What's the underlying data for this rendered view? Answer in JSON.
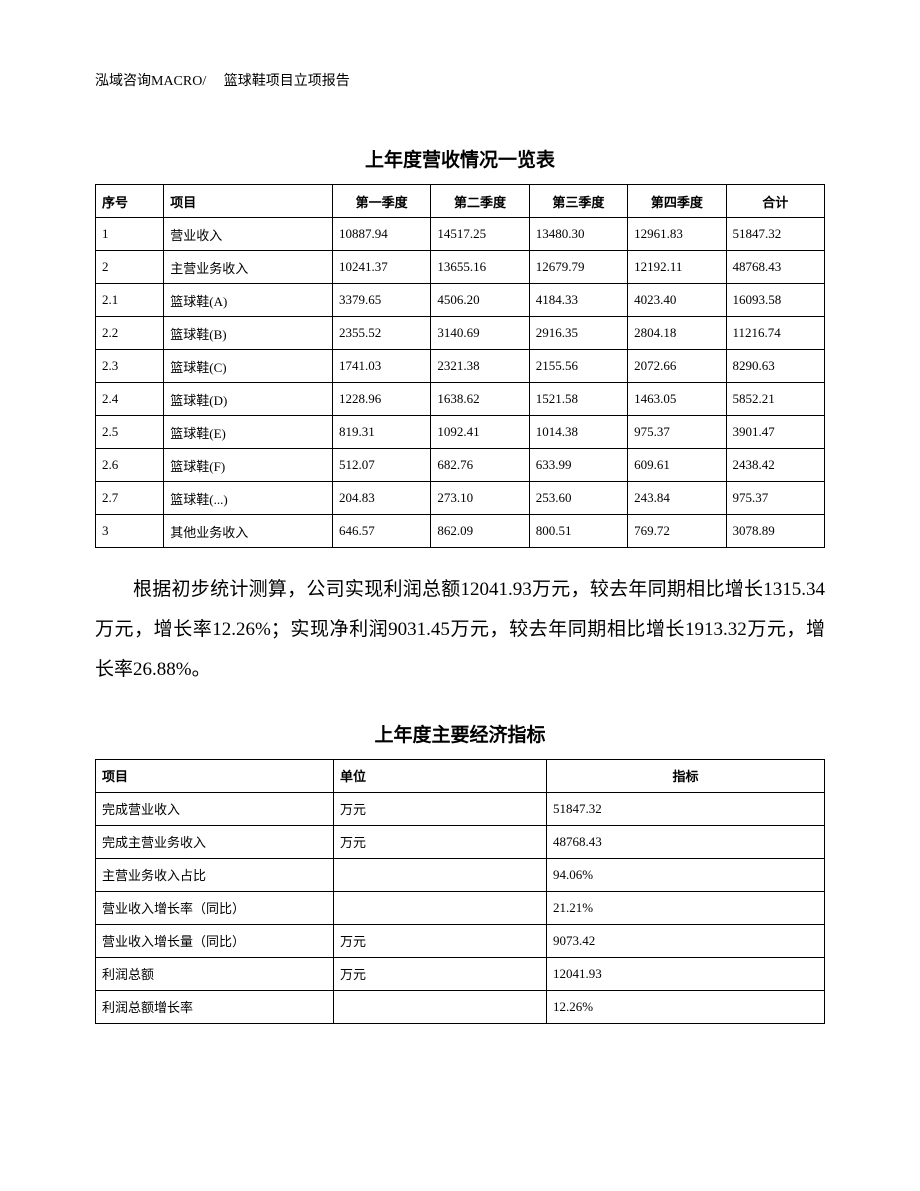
{
  "header": "泓域咨询MACRO/　 篮球鞋项目立项报告",
  "table1": {
    "title": "上年度营收情况一览表",
    "columns": [
      "序号",
      "项目",
      "第一季度",
      "第二季度",
      "第三季度",
      "第四季度",
      "合计"
    ],
    "rows": [
      [
        "1",
        "营业收入",
        "10887.94",
        "14517.25",
        "13480.30",
        "12961.83",
        "51847.32"
      ],
      [
        "2",
        "主营业务收入",
        "10241.37",
        "13655.16",
        "12679.79",
        "12192.11",
        "48768.43"
      ],
      [
        "2.1",
        "篮球鞋(A)",
        "3379.65",
        "4506.20",
        "4184.33",
        "4023.40",
        "16093.58"
      ],
      [
        "2.2",
        "篮球鞋(B)",
        "2355.52",
        "3140.69",
        "2916.35",
        "2804.18",
        "11216.74"
      ],
      [
        "2.3",
        "篮球鞋(C)",
        "1741.03",
        "2321.38",
        "2155.56",
        "2072.66",
        "8290.63"
      ],
      [
        "2.4",
        "篮球鞋(D)",
        "1228.96",
        "1638.62",
        "1521.58",
        "1463.05",
        "5852.21"
      ],
      [
        "2.5",
        "篮球鞋(E)",
        "819.31",
        "1092.41",
        "1014.38",
        "975.37",
        "3901.47"
      ],
      [
        "2.6",
        "篮球鞋(F)",
        "512.07",
        "682.76",
        "633.99",
        "609.61",
        "2438.42"
      ],
      [
        "2.7",
        "篮球鞋(...)",
        "204.83",
        "273.10",
        "253.60",
        "243.84",
        "975.37"
      ],
      [
        "3",
        "其他业务收入",
        "646.57",
        "862.09",
        "800.51",
        "769.72",
        "3078.89"
      ]
    ]
  },
  "paragraph": "根据初步统计测算，公司实现利润总额12041.93万元，较去年同期相比增长1315.34万元，增长率12.26%；实现净利润9031.45万元，较去年同期相比增长1913.32万元，增长率26.88%。",
  "table2": {
    "title": "上年度主要经济指标",
    "columns": [
      "项目",
      "单位",
      "指标"
    ],
    "rows": [
      [
        "完成营业收入",
        "万元",
        "51847.32"
      ],
      [
        "完成主营业务收入",
        "万元",
        "48768.43"
      ],
      [
        "主营业务收入占比",
        "",
        "94.06%"
      ],
      [
        "营业收入增长率（同比）",
        "",
        "21.21%"
      ],
      [
        "营业收入增长量（同比）",
        "万元",
        "9073.42"
      ],
      [
        "利润总额",
        "万元",
        "12041.93"
      ],
      [
        "利润总额增长率",
        "",
        "12.26%"
      ]
    ]
  }
}
